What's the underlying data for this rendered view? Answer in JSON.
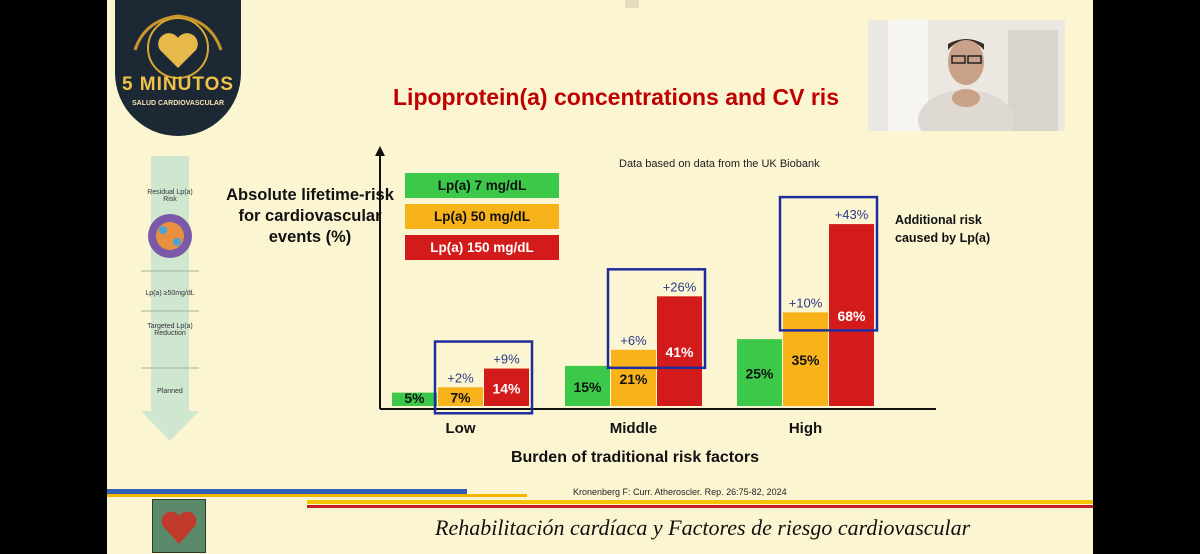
{
  "logo": {
    "line1": "5 MINUTOS",
    "line2": "SALUD CARDIOVASCULAR"
  },
  "side_arrow": {
    "labels": [
      "Residual Lp(a) Risk",
      "Lp(a) ≥50mg/dL",
      "Targeted Lp(a) Reduction",
      "Planned"
    ]
  },
  "colors": {
    "low": "#3cc94a",
    "mid": "#f8b31a",
    "high": "#d41b1b",
    "box": "#1f2c9c",
    "title": "#c00000"
  },
  "chart_data": {
    "type": "bar",
    "title": "Lipoprotein(a) concentrations and CV ris",
    "subtitle": "Data based on data from the UK Biobank",
    "ylabel": "Absolute lifetime-risk for cardiovascular events  (%)",
    "xlabel": "Burden of traditional risk factors",
    "categories": [
      "Low",
      "Middle",
      "High"
    ],
    "series": [
      {
        "name": "Lp(a) 7 mg/dL",
        "values": [
          5,
          15,
          25
        ],
        "labels": [
          "5%",
          "15%",
          "25%"
        ]
      },
      {
        "name": "Lp(a) 50 mg/dL",
        "values": [
          7,
          21,
          35
        ],
        "labels": [
          "7%",
          "21%",
          "35%"
        ]
      },
      {
        "name": "Lp(a) 150 mg/dL",
        "values": [
          14,
          41,
          68
        ],
        "labels": [
          "14%",
          "41%",
          "68%"
        ]
      }
    ],
    "increments": {
      "mid": [
        "+2%",
        "+6%",
        "+10%"
      ],
      "high": [
        "+9%",
        "+26%",
        "+43%"
      ]
    },
    "annotation": "Additional risk caused by Lp(a)",
    "ylim": [
      0,
      80
    ]
  },
  "citation": "Kronenberg F: Curr. Atheroscler. Rep. 26:75-82, 2024",
  "footer": {
    "title": "Rehabilitación cardíaca y Factores de riesgo cardiovascular"
  }
}
